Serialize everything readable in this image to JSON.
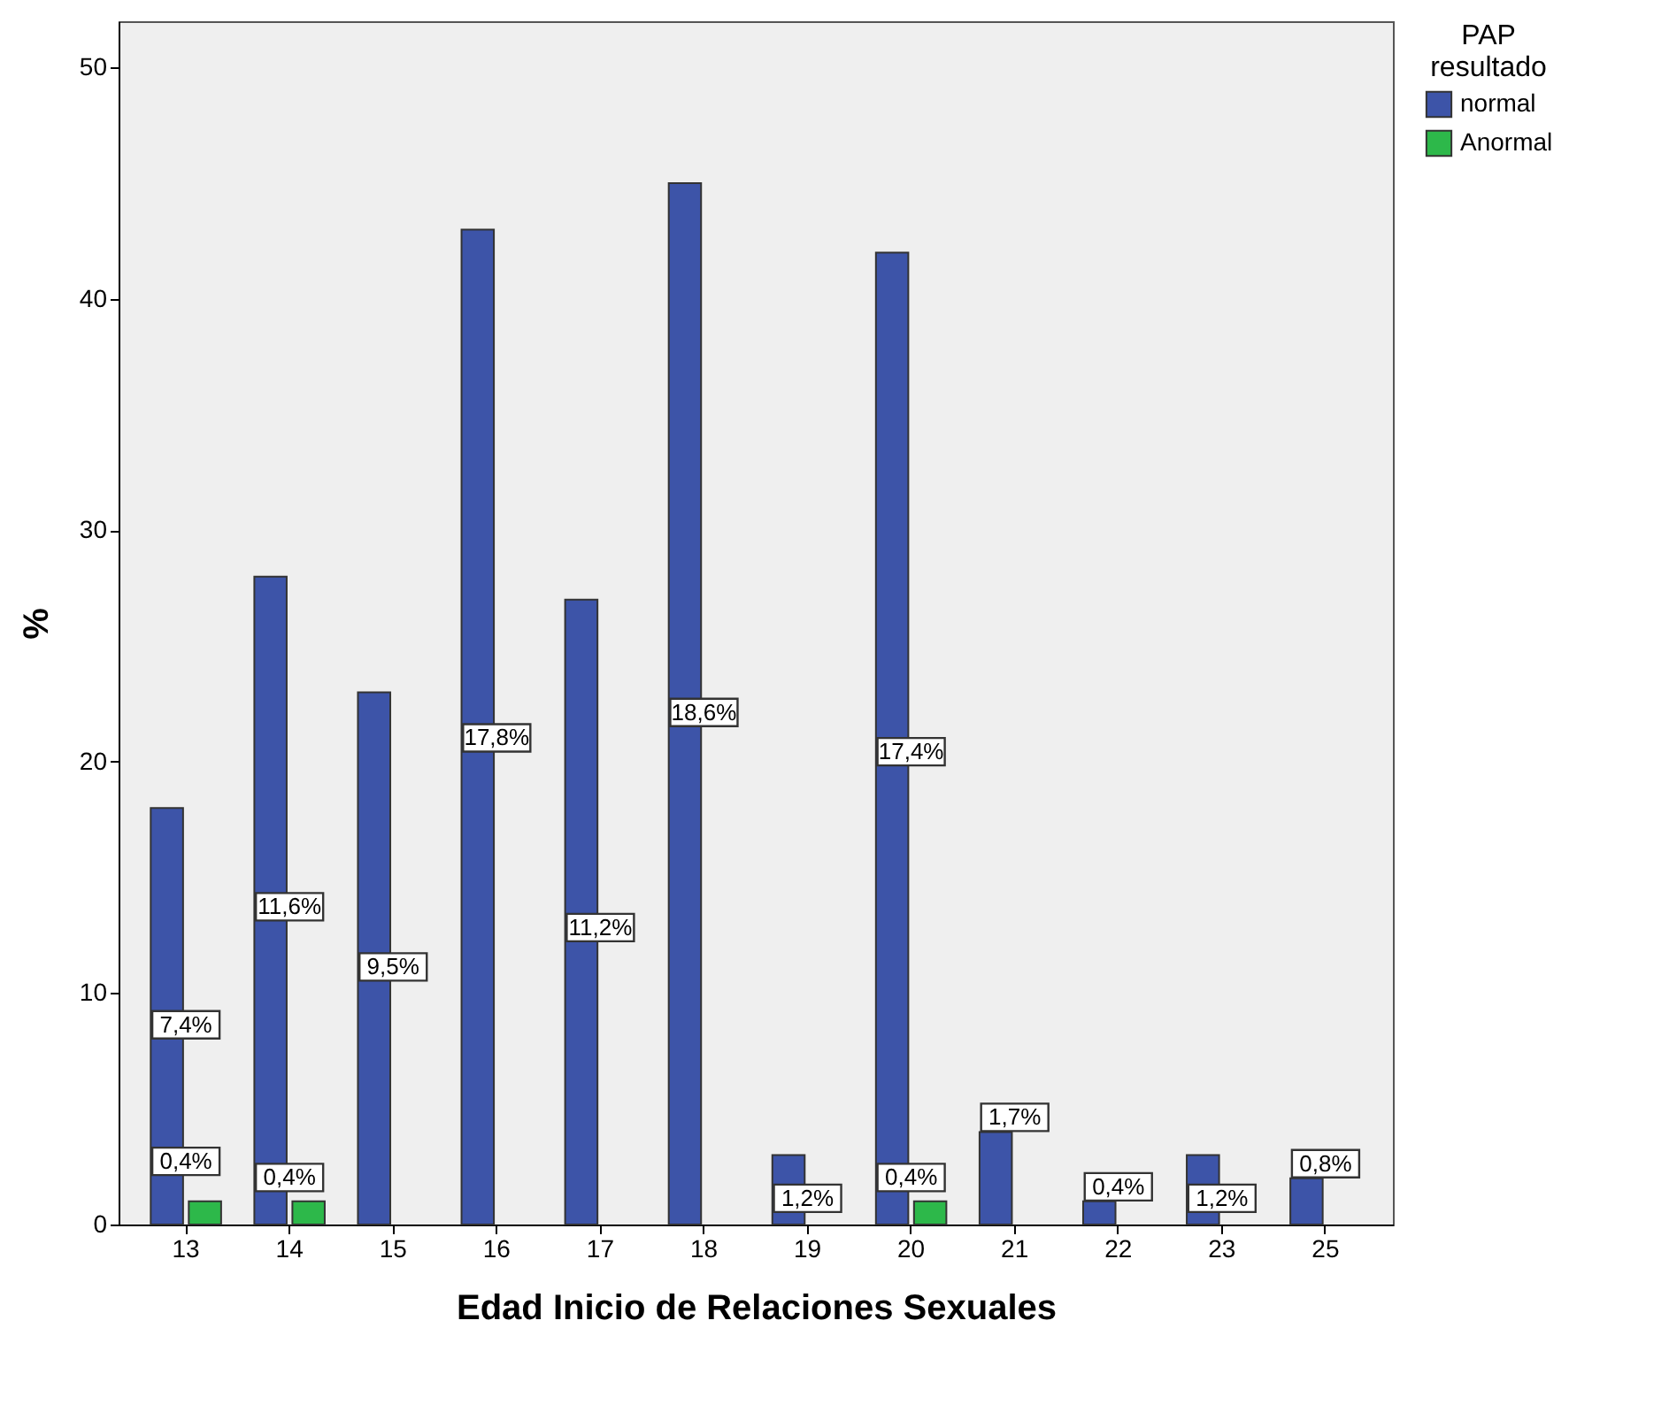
{
  "chart_data": {
    "type": "bar",
    "xlabel": "Edad Inicio de Relaciones Sexuales",
    "ylabel": "%",
    "legend_title": "PAP resultado",
    "legend": "top right",
    "grid": false,
    "categories": [
      "13",
      "14",
      "15",
      "16",
      "17",
      "18",
      "19",
      "20",
      "21",
      "22",
      "23",
      "25"
    ],
    "ylim": [
      0,
      52
    ],
    "yticks": [
      0,
      10,
      20,
      30,
      40,
      50
    ],
    "series": [
      {
        "name": "normal",
        "color": "#3d54a8",
        "values": [
          18,
          28,
          23,
          43,
          27,
          45,
          3,
          42,
          4,
          1,
          3,
          2
        ]
      },
      {
        "name": "Anormal",
        "color": "#2db84a",
        "values": [
          1,
          1,
          null,
          null,
          null,
          null,
          null,
          1,
          null,
          null,
          null,
          null
        ]
      }
    ],
    "annotations": [
      {
        "text": "7,4%",
        "x": "13",
        "y": 8
      },
      {
        "text": "0,4%",
        "x": "13",
        "y": 2.1
      },
      {
        "text": "11,6%",
        "x": "14",
        "y": 13.1
      },
      {
        "text": "0,4%",
        "x": "14",
        "y": 1.4
      },
      {
        "text": "9,5%",
        "x": "15",
        "y": 10.5
      },
      {
        "text": "17,8%",
        "x": "16",
        "y": 20.4
      },
      {
        "text": "11,2%",
        "x": "17",
        "y": 12.2
      },
      {
        "text": "18,6%",
        "x": "18",
        "y": 21.5
      },
      {
        "text": "1,2%",
        "x": "19",
        "y": 0.5
      },
      {
        "text": "17,4%",
        "x": "20",
        "y": 19.8
      },
      {
        "text": "0,4%",
        "x": "20",
        "y": 1.4
      },
      {
        "text": "1,7%",
        "x": "21",
        "y": 4
      },
      {
        "text": "0,4%",
        "x": "22",
        "y": 1
      },
      {
        "text": "1,2%",
        "x": "23",
        "y": 0.5
      },
      {
        "text": "0,8%",
        "x": "25",
        "y": 2
      }
    ]
  }
}
